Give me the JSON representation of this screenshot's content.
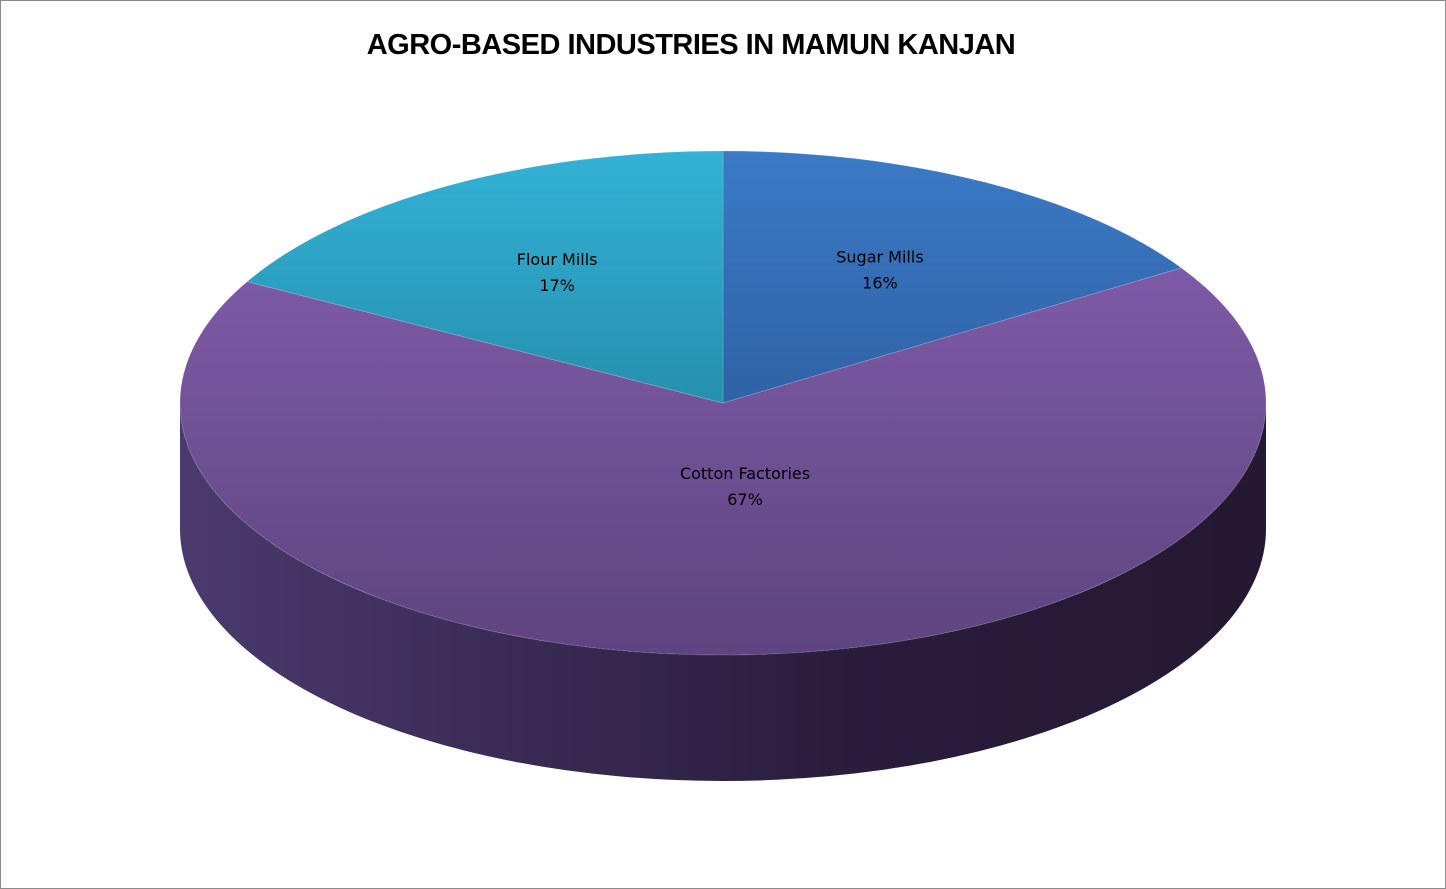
{
  "chart_data": {
    "type": "pie",
    "title": "AGRO-BASED INDUSTRIES IN MAMUN KANJAN",
    "style": "3d",
    "slices": [
      {
        "name": "Sugar Mills",
        "percent": 16,
        "label": "16%",
        "color": "#3a73bd"
      },
      {
        "name": "Cotton Factories",
        "percent": 67,
        "label": "67%",
        "color": "#7a58a3"
      },
      {
        "name": "Flour Mills",
        "percent": 17,
        "label": "17%",
        "color": "#2aa7c9"
      }
    ],
    "legend": "none"
  }
}
